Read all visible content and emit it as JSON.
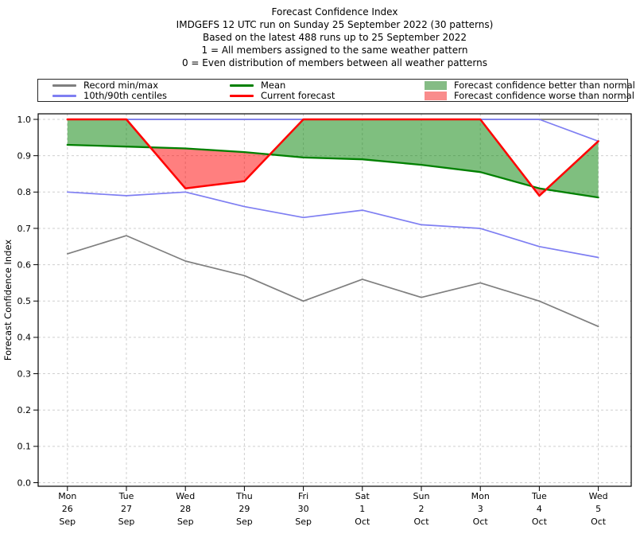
{
  "header": {
    "lines": [
      "Forecast Confidence Index",
      "IMDGEFS 12 UTC run on Sunday 25 September 2022 (30 patterns)",
      "Based on the latest 488 runs up to 25 September 2022",
      "1 = All members assigned to the same weather pattern",
      "0 = Even distribution of members between all weather patterns"
    ]
  },
  "legend": {
    "items": [
      {
        "label": "Record min/max",
        "swatch": "line",
        "color": "#7f7f7f"
      },
      {
        "label": "10th/90th centiles",
        "swatch": "line",
        "color": "#7e7ef2"
      },
      {
        "label": "Mean",
        "swatch": "line",
        "color": "#008000"
      },
      {
        "label": "Current forecast",
        "swatch": "line",
        "color": "#ff0000"
      },
      {
        "label": "Forecast confidence better than normal",
        "swatch": "patch",
        "color": "#85bc85"
      },
      {
        "label": "Forecast confidence worse than normal",
        "swatch": "patch",
        "color": "#f98c8c"
      }
    ]
  },
  "chart_data": {
    "type": "line",
    "title": "Forecast Confidence Index",
    "xlabel": "",
    "ylabel": "Forecast Confidence Index",
    "ylim": [
      0.0,
      1.0
    ],
    "yticks": [
      "0.0",
      "0.1",
      "0.2",
      "0.3",
      "0.4",
      "0.5",
      "0.6",
      "0.7",
      "0.8",
      "0.9",
      "1.0"
    ],
    "grid": "dashed, both axes",
    "legend_position": "top",
    "categories": [
      [
        "Mon",
        "26",
        "Sep"
      ],
      [
        "Tue",
        "27",
        "Sep"
      ],
      [
        "Wed",
        "28",
        "Sep"
      ],
      [
        "Thu",
        "29",
        "Sep"
      ],
      [
        "Fri",
        "30",
        "Sep"
      ],
      [
        "Sat",
        "1",
        "Oct"
      ],
      [
        "Sun",
        "2",
        "Oct"
      ],
      [
        "Mon",
        "3",
        "Oct"
      ],
      [
        "Tue",
        "4",
        "Oct"
      ],
      [
        "Wed",
        "5",
        "Oct"
      ]
    ],
    "series": [
      {
        "name": "Record max",
        "color": "#7f7f7f",
        "values": [
          1.0,
          1.0,
          1.0,
          1.0,
          1.0,
          1.0,
          1.0,
          1.0,
          1.0,
          1.0
        ]
      },
      {
        "name": "Record min",
        "color": "#7f7f7f",
        "values": [
          0.63,
          0.68,
          0.61,
          0.57,
          0.5,
          0.56,
          0.51,
          0.55,
          0.5,
          0.43
        ]
      },
      {
        "name": "90th centile",
        "color": "#7e7ef2",
        "values": [
          1.0,
          1.0,
          1.0,
          1.0,
          1.0,
          1.0,
          1.0,
          1.0,
          1.0,
          0.94
        ]
      },
      {
        "name": "10th centile",
        "color": "#7e7ef2",
        "values": [
          0.8,
          0.79,
          0.8,
          0.76,
          0.73,
          0.75,
          0.71,
          0.7,
          0.65,
          0.62
        ]
      },
      {
        "name": "Mean",
        "color": "#008000",
        "values": [
          0.93,
          0.925,
          0.92,
          0.91,
          0.895,
          0.89,
          0.875,
          0.855,
          0.81,
          0.785
        ]
      },
      {
        "name": "Current forecast",
        "color": "#ff0000",
        "values": [
          1.0,
          1.0,
          0.81,
          0.83,
          1.0,
          1.0,
          1.0,
          1.0,
          0.79,
          0.94
        ]
      }
    ],
    "fills": {
      "between": [
        "Current forecast",
        "Mean"
      ],
      "better_color": "rgba(0,128,0,0.5)",
      "worse_color": "rgba(255,0,0,0.5)"
    }
  }
}
